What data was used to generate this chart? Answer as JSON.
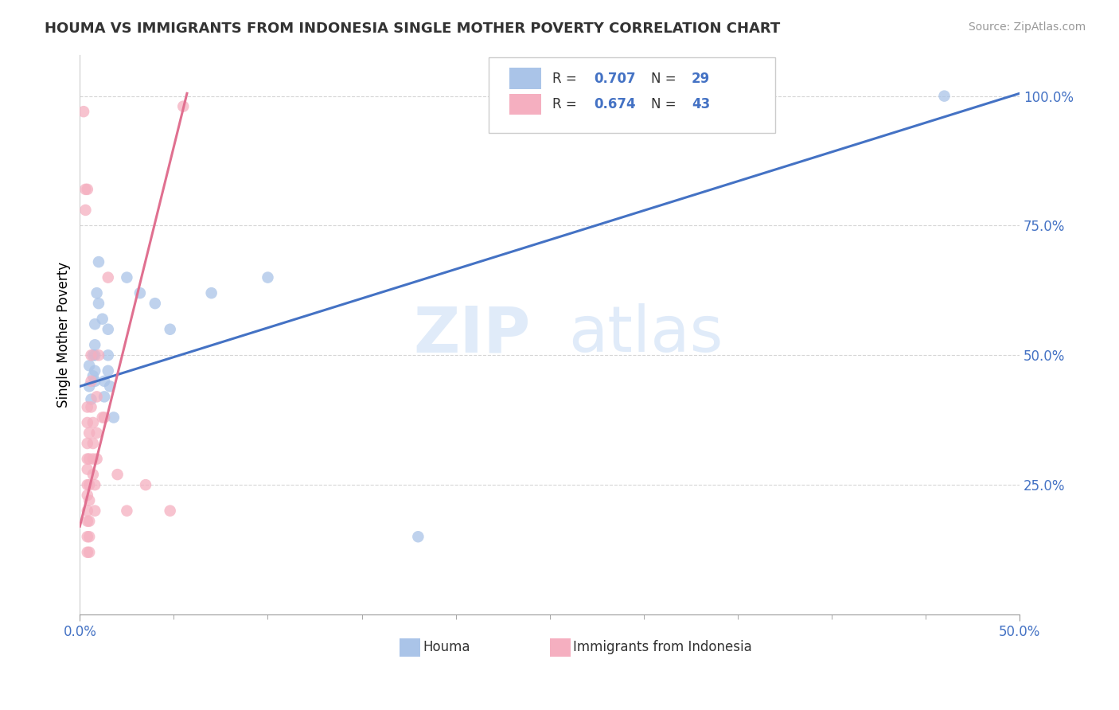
{
  "title": "HOUMA VS IMMIGRANTS FROM INDONESIA SINGLE MOTHER POVERTY CORRELATION CHART",
  "source": "Source: ZipAtlas.com",
  "ylabel": "Single Mother Poverty",
  "xlim": [
    0.0,
    0.5
  ],
  "ylim": [
    0.0,
    1.08
  ],
  "xtick_left_label": "0.0%",
  "xtick_right_label": "50.0%",
  "ytick_labels": [
    "25.0%",
    "50.0%",
    "75.0%",
    "100.0%"
  ],
  "ytick_positions": [
    0.25,
    0.5,
    0.75,
    1.0
  ],
  "houma_R": "0.707",
  "houma_N": "29",
  "indonesia_R": "0.674",
  "indonesia_N": "43",
  "houma_color": "#aac4e8",
  "indonesia_color": "#f5afc0",
  "houma_line_color": "#4472c4",
  "indonesia_line_color": "#e07090",
  "watermark_zip": "ZIP",
  "watermark_atlas": "atlas",
  "background_color": "#ffffff",
  "houma_points": [
    [
      0.005,
      0.48
    ],
    [
      0.005,
      0.44
    ],
    [
      0.006,
      0.415
    ],
    [
      0.007,
      0.5
    ],
    [
      0.007,
      0.46
    ],
    [
      0.008,
      0.56
    ],
    [
      0.008,
      0.52
    ],
    [
      0.008,
      0.5
    ],
    [
      0.008,
      0.47
    ],
    [
      0.008,
      0.45
    ],
    [
      0.009,
      0.62
    ],
    [
      0.01,
      0.68
    ],
    [
      0.01,
      0.6
    ],
    [
      0.012,
      0.57
    ],
    [
      0.013,
      0.45
    ],
    [
      0.013,
      0.42
    ],
    [
      0.015,
      0.55
    ],
    [
      0.015,
      0.5
    ],
    [
      0.015,
      0.47
    ],
    [
      0.016,
      0.44
    ],
    [
      0.018,
      0.38
    ],
    [
      0.025,
      0.65
    ],
    [
      0.032,
      0.62
    ],
    [
      0.04,
      0.6
    ],
    [
      0.048,
      0.55
    ],
    [
      0.07,
      0.62
    ],
    [
      0.1,
      0.65
    ],
    [
      0.18,
      0.15
    ],
    [
      0.46,
      1.0
    ]
  ],
  "indonesia_points": [
    [
      0.002,
      0.97
    ],
    [
      0.003,
      0.82
    ],
    [
      0.003,
      0.78
    ],
    [
      0.004,
      0.82
    ],
    [
      0.004,
      0.4
    ],
    [
      0.004,
      0.37
    ],
    [
      0.004,
      0.33
    ],
    [
      0.004,
      0.3
    ],
    [
      0.004,
      0.28
    ],
    [
      0.004,
      0.25
    ],
    [
      0.004,
      0.23
    ],
    [
      0.004,
      0.2
    ],
    [
      0.004,
      0.18
    ],
    [
      0.004,
      0.15
    ],
    [
      0.004,
      0.12
    ],
    [
      0.005,
      0.35
    ],
    [
      0.005,
      0.3
    ],
    [
      0.005,
      0.25
    ],
    [
      0.005,
      0.22
    ],
    [
      0.005,
      0.18
    ],
    [
      0.005,
      0.15
    ],
    [
      0.005,
      0.12
    ],
    [
      0.006,
      0.5
    ],
    [
      0.006,
      0.45
    ],
    [
      0.006,
      0.4
    ],
    [
      0.007,
      0.37
    ],
    [
      0.007,
      0.33
    ],
    [
      0.007,
      0.3
    ],
    [
      0.007,
      0.27
    ],
    [
      0.008,
      0.25
    ],
    [
      0.008,
      0.2
    ],
    [
      0.009,
      0.42
    ],
    [
      0.009,
      0.35
    ],
    [
      0.009,
      0.3
    ],
    [
      0.01,
      0.5
    ],
    [
      0.012,
      0.38
    ],
    [
      0.013,
      0.38
    ],
    [
      0.015,
      0.65
    ],
    [
      0.02,
      0.27
    ],
    [
      0.025,
      0.2
    ],
    [
      0.035,
      0.25
    ],
    [
      0.048,
      0.2
    ],
    [
      0.055,
      0.98
    ]
  ],
  "houma_trendline": [
    [
      0.0,
      0.44
    ],
    [
      0.5,
      1.005
    ]
  ],
  "indonesia_trendline": [
    [
      0.0,
      0.17
    ],
    [
      0.057,
      1.005
    ]
  ]
}
